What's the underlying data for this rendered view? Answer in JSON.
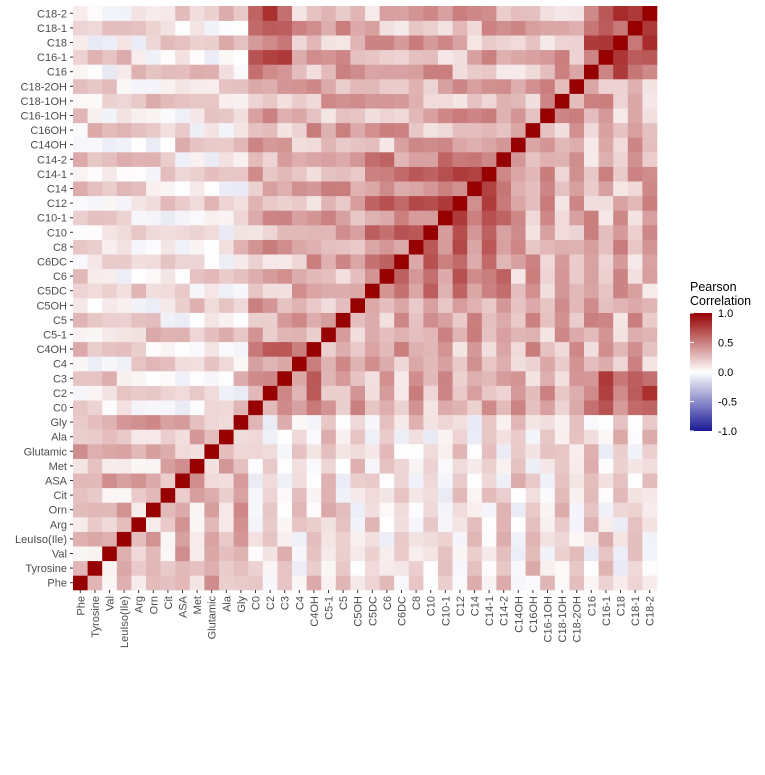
{
  "chart_data": {
    "type": "heatmap",
    "title": "",
    "xlabel": "",
    "ylabel": "",
    "labels": [
      "Phe",
      "Tyrosine",
      "Val",
      "LeuIso(Ile)",
      "Arg",
      "Orn",
      "Cit",
      "ASA",
      "Met",
      "Glutamic",
      "Ala",
      "Gly",
      "C0",
      "C2",
      "C3",
      "C4",
      "C4OH",
      "C5-1",
      "C5",
      "C5OH",
      "C5DC",
      "C6",
      "C6DC",
      "C8",
      "C10",
      "C10-1",
      "C12",
      "C14",
      "C14-1",
      "C14-2",
      "C14OH",
      "C16OH",
      "C16-1OH",
      "C18-1OH",
      "C18-2OH",
      "C16",
      "C16-1",
      "C18",
      "C18-1",
      "C18-2"
    ],
    "blocks": [
      {
        "rows": [
          0,
          11
        ],
        "cols": [
          0,
          11
        ],
        "value": 0.25
      },
      {
        "rows": [
          12,
          39
        ],
        "cols": [
          12,
          39
        ],
        "value": 0.3
      },
      {
        "rows": [
          12,
          16
        ],
        "cols": [
          12,
          16
        ],
        "value": 0.45
      },
      {
        "rows": [
          20,
          29
        ],
        "cols": [
          20,
          29
        ],
        "value": 0.5
      },
      {
        "rows": [
          25,
          29
        ],
        "cols": [
          25,
          29
        ],
        "value": 0.62
      },
      {
        "rows": [
          35,
          39
        ],
        "cols": [
          35,
          39
        ],
        "value": 0.65
      },
      {
        "rows": [
          12,
          14
        ],
        "cols": [
          35,
          39
        ],
        "value": 0.6
      }
    ],
    "legend": {
      "title": [
        "Pearson",
        "Correlation"
      ],
      "ticks": [
        "1.0",
        "0.5",
        "0.0",
        "-0.5",
        "-1.0"
      ],
      "tick_values": [
        1.0,
        0.5,
        0.0,
        -0.5,
        -1.0
      ],
      "range": [
        -1,
        1
      ],
      "colors": {
        "low": "#1a1a96",
        "mid": "#ffffff",
        "high": "#960000"
      },
      "placement": "right"
    },
    "diagonal_value": 1.0,
    "grid": false
  }
}
